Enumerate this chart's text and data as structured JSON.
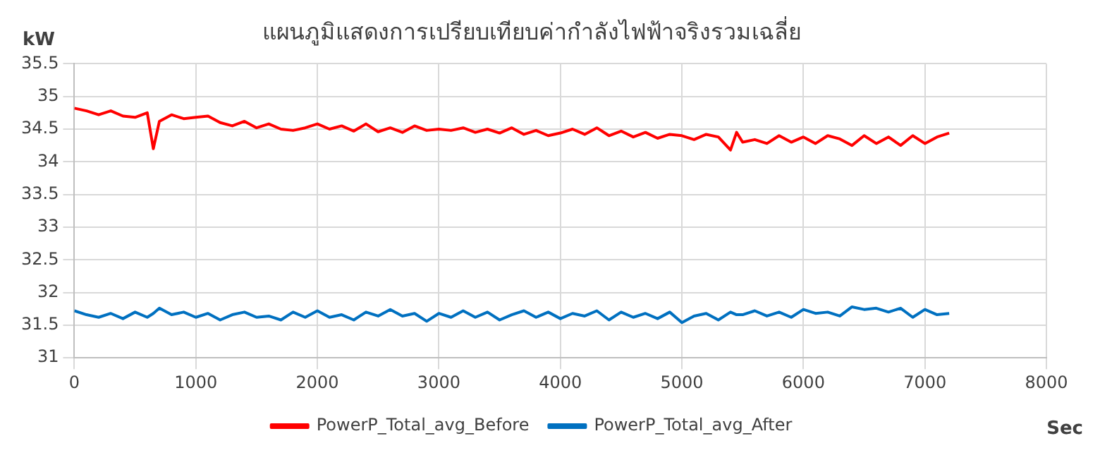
{
  "chart_data": {
    "type": "line",
    "title": "แผนภูมิแสดงการเปรียบเทียบค่ากำลังไฟฟ้าจริงรวมเฉลี่ย",
    "xlabel": "Sec",
    "ylabel": "kW",
    "x": [
      0,
      100,
      200,
      300,
      400,
      500,
      600,
      650,
      700,
      800,
      900,
      1000,
      1100,
      1200,
      1300,
      1400,
      1500,
      1600,
      1700,
      1800,
      1900,
      2000,
      2100,
      2200,
      2300,
      2400,
      2500,
      2600,
      2700,
      2800,
      2900,
      3000,
      3100,
      3200,
      3300,
      3400,
      3500,
      3600,
      3700,
      3800,
      3900,
      4000,
      4100,
      4200,
      4300,
      4400,
      4500,
      4600,
      4700,
      4800,
      4900,
      5000,
      5100,
      5200,
      5300,
      5400,
      5450,
      5500,
      5600,
      5700,
      5800,
      5900,
      6000,
      6100,
      6200,
      6300,
      6400,
      6500,
      6600,
      6700,
      6800,
      6900,
      7000,
      7100,
      7200
    ],
    "series": [
      {
        "name": "PowerP_Total_avg_Before",
        "color": "#ff0000",
        "values": [
          34.82,
          34.78,
          34.72,
          34.78,
          34.7,
          34.68,
          34.75,
          34.2,
          34.62,
          34.72,
          34.66,
          34.68,
          34.7,
          34.6,
          34.55,
          34.62,
          34.52,
          34.58,
          34.5,
          34.48,
          34.52,
          34.58,
          34.5,
          34.55,
          34.47,
          34.58,
          34.46,
          34.52,
          34.45,
          34.55,
          34.48,
          34.5,
          34.48,
          34.52,
          34.45,
          34.5,
          34.44,
          34.52,
          34.42,
          34.48,
          34.4,
          34.44,
          34.5,
          34.42,
          34.52,
          34.4,
          34.47,
          34.38,
          34.45,
          34.36,
          34.42,
          34.4,
          34.34,
          34.42,
          34.38,
          34.18,
          34.45,
          34.3,
          34.34,
          34.28,
          34.4,
          34.3,
          34.38,
          34.28,
          34.4,
          34.35,
          34.25,
          34.4,
          34.28,
          34.38,
          34.25,
          34.4,
          34.28,
          34.38,
          34.44
        ]
      },
      {
        "name": "PowerP_Total_avg_After",
        "color": "#0070c0",
        "values": [
          31.72,
          31.66,
          31.62,
          31.68,
          31.6,
          31.7,
          31.62,
          31.68,
          31.76,
          31.66,
          31.7,
          31.62,
          31.68,
          31.58,
          31.66,
          31.7,
          31.62,
          31.64,
          31.58,
          31.7,
          31.62,
          31.72,
          31.62,
          31.66,
          31.58,
          31.7,
          31.64,
          31.74,
          31.64,
          31.68,
          31.56,
          31.68,
          31.62,
          31.72,
          31.62,
          31.7,
          31.58,
          31.66,
          31.72,
          31.62,
          31.7,
          31.6,
          31.68,
          31.64,
          31.72,
          31.58,
          31.7,
          31.62,
          31.68,
          31.6,
          31.7,
          31.54,
          31.64,
          31.68,
          31.58,
          31.7,
          31.66,
          31.66,
          31.72,
          31.64,
          31.7,
          31.62,
          31.74,
          31.68,
          31.7,
          31.64,
          31.78,
          31.74,
          31.76,
          31.7,
          31.76,
          31.62,
          31.74,
          31.66,
          31.68
        ]
      }
    ],
    "xlim": [
      0,
      8000
    ],
    "xticks": [
      0,
      1000,
      2000,
      3000,
      4000,
      5000,
      6000,
      7000,
      8000
    ],
    "ylim": [
      31,
      35.5
    ],
    "yticks": [
      31,
      31.5,
      32,
      32.5,
      33,
      33.5,
      34,
      34.5,
      35,
      35.5
    ],
    "grid": true,
    "legend": "bottom",
    "marker": "none",
    "line_style": "solid"
  }
}
